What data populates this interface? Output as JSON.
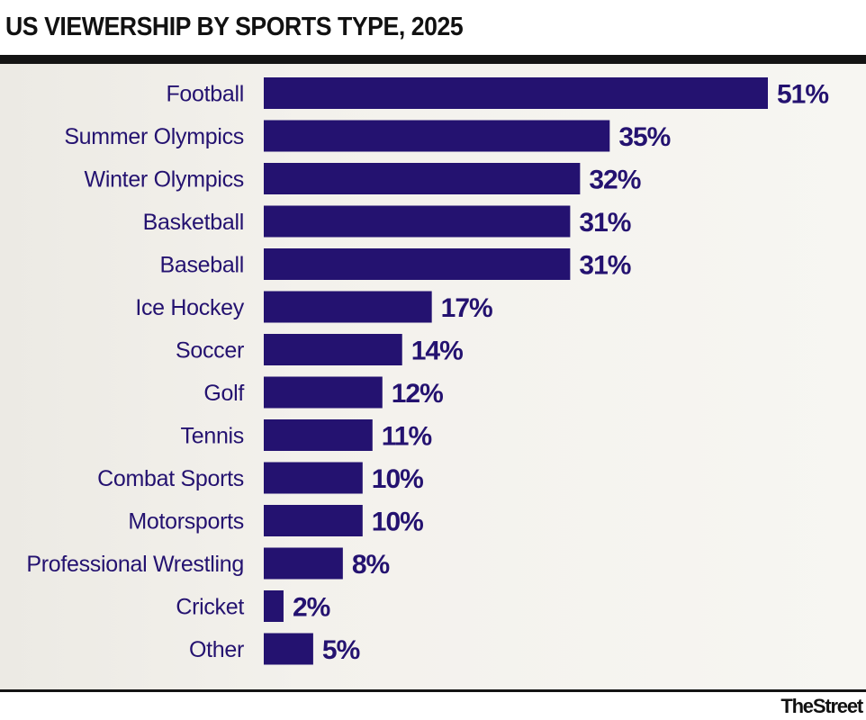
{
  "chart_data": {
    "type": "bar",
    "orientation": "horizontal",
    "title": "US VIEWERSHIP BY SPORTS TYPE, 2025",
    "categories": [
      "Football",
      "Summer Olympics",
      "Winter Olympics",
      "Basketball",
      "Baseball",
      "Ice Hockey",
      "Soccer",
      "Golf",
      "Tennis",
      "Combat Sports",
      "Motorsports",
      "Professional Wrestling",
      "Cricket",
      "Other"
    ],
    "values": [
      51,
      35,
      32,
      31,
      31,
      17,
      14,
      12,
      11,
      10,
      10,
      8,
      2,
      5
    ],
    "value_labels": [
      "51%",
      "35%",
      "32%",
      "31%",
      "31%",
      "17%",
      "14%",
      "12%",
      "11%",
      "10%",
      "10%",
      "8%",
      "2%",
      "5%"
    ],
    "unit": "%",
    "xlim": [
      0,
      51
    ],
    "grid": false,
    "legend": "none",
    "bar_color": "#241270"
  },
  "brand": "TheStreet"
}
